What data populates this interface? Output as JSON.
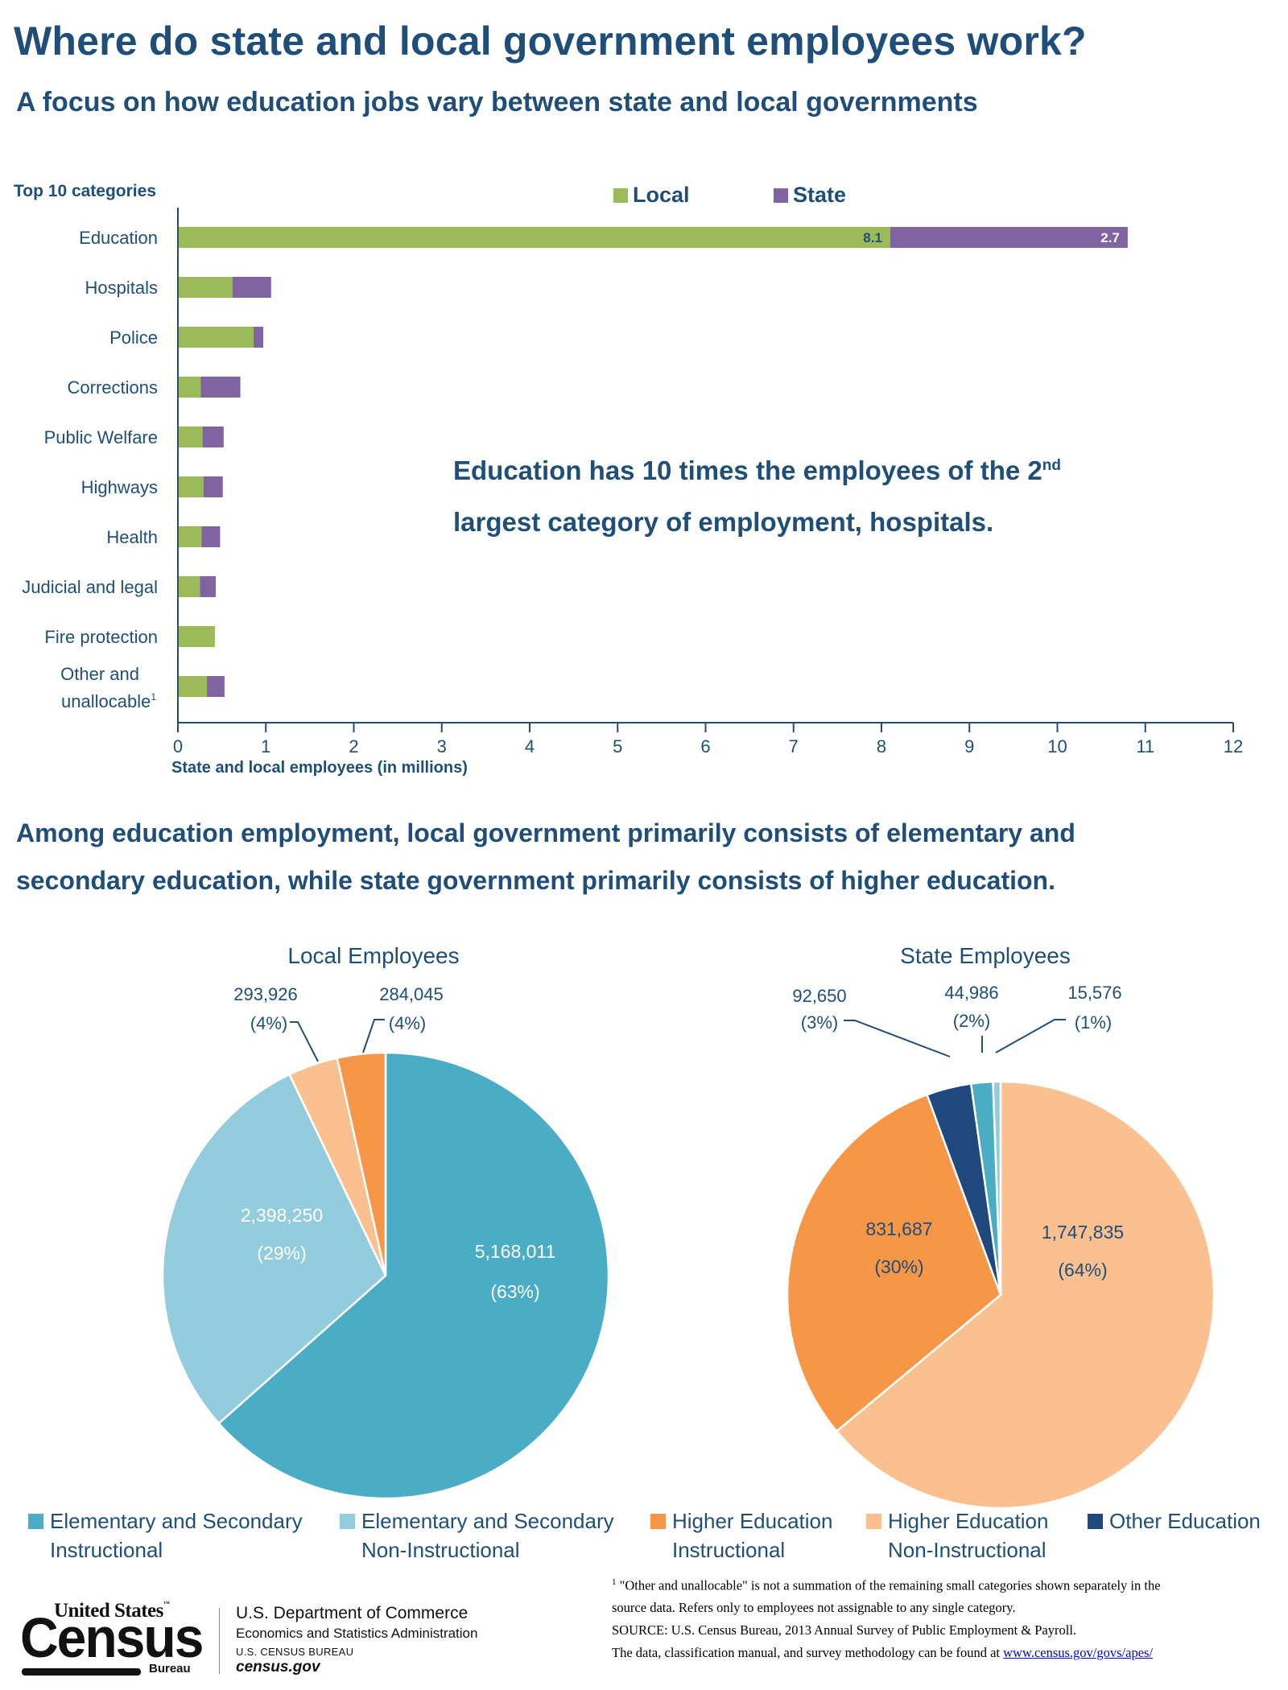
{
  "header": {
    "title": "Where do state and local government employees work?",
    "subtitle": "A focus on how education jobs vary between state and local governments"
  },
  "colors": {
    "text": "#1f4e79",
    "local": "#9bbb59",
    "state": "#8064a2",
    "elem_sec_instructional": "#4bacc6",
    "elem_sec_non_instructional": "#93cddd",
    "higher_ed_instructional": "#f79646",
    "higher_ed_non_instructional": "#fac090",
    "other_education": "#1f497d"
  },
  "annotation": {
    "line1_prefix": "Education has 10 times the employees of the 2",
    "line1_sup": "nd",
    "line2": "largest category of employment, hospitals."
  },
  "headline": {
    "line1": "Among education employment, local government primarily consists of elementary and",
    "line2": "secondary education, while state government primarily consists of higher education."
  },
  "chart_data": [
    {
      "type": "bar",
      "orientation": "horizontal",
      "stacked": true,
      "title": "Top 10 categories",
      "xlabel": "State and local employees (in millions)",
      "ylabel": "",
      "xlim": [
        0,
        12
      ],
      "xticks": [
        "0",
        "1",
        "2",
        "3",
        "4",
        "5",
        "6",
        "7",
        "8",
        "9",
        "10",
        "11",
        "12"
      ],
      "grid": false,
      "legend": {
        "placement": "top-right",
        "entries": [
          "Local",
          "State"
        ]
      },
      "categories": [
        "Education",
        "Hospitals",
        "Police",
        "Corrections",
        "Public Welfare",
        "Highways",
        "Health",
        "Judicial and legal",
        "Fire protection",
        "Other and unallocable"
      ],
      "category_footnote": {
        "index": 9,
        "mark": "1",
        "line1": "Other and",
        "line2": "unallocable"
      },
      "series": [
        {
          "name": "Local",
          "values": [
            8.1,
            0.62,
            0.86,
            0.26,
            0.28,
            0.29,
            0.27,
            0.25,
            0.42,
            0.33
          ]
        },
        {
          "name": "State",
          "values": [
            2.7,
            0.44,
            0.11,
            0.45,
            0.24,
            0.22,
            0.21,
            0.18,
            0.0,
            0.2
          ]
        }
      ],
      "data_labels": [
        {
          "category": "Education",
          "series": "Local",
          "text": "8.1"
        },
        {
          "category": "Education",
          "series": "State",
          "text": "2.7"
        }
      ]
    },
    {
      "type": "pie",
      "title": "Local Employees",
      "slices": [
        {
          "name": "Elementary and Secondary Instructional",
          "value": 5168011,
          "label": "5,168,011",
          "pct": "(63%)"
        },
        {
          "name": "Elementary and Secondary Non-Instructional",
          "value": 2398250,
          "label": "2,398,250",
          "pct": "(29%)"
        },
        {
          "name": "Higher Education Non-Instructional",
          "value": 293926,
          "label": "293,926",
          "pct": "(4%)"
        },
        {
          "name": "Higher Education Instructional",
          "value": 284045,
          "label": "284,045",
          "pct": "(4%)"
        }
      ]
    },
    {
      "type": "pie",
      "title": "State Employees",
      "slices": [
        {
          "name": "Higher Education Non-Instructional",
          "value": 1747835,
          "label": "1,747,835",
          "pct": "(64%)"
        },
        {
          "name": "Higher Education Instructional",
          "value": 831687,
          "label": "831,687",
          "pct": "(30%)"
        },
        {
          "name": "Other Education",
          "value": 92650,
          "label": "92,650",
          "pct": "(3%)"
        },
        {
          "name": "Elementary and Secondary Instructional",
          "value": 44986,
          "label": "44,986",
          "pct": "(2%)"
        },
        {
          "name": "Elementary and Secondary Non-Instructional",
          "value": 15576,
          "label": "15,576",
          "pct": "(1%)"
        }
      ]
    }
  ],
  "pie_legend": [
    {
      "line1": "Elementary and Secondary",
      "line2": "Instructional",
      "color": "#4bacc6"
    },
    {
      "line1": "Elementary and Secondary",
      "line2": "Non-Instructional",
      "color": "#93cddd"
    },
    {
      "line1": "Higher Education",
      "line2": "Instructional",
      "color": "#f79646"
    },
    {
      "line1": "Higher Education",
      "line2": "Non-Instructional",
      "color": "#fac090"
    },
    {
      "line1": "Other Education",
      "line2": "",
      "color": "#1f497d"
    }
  ],
  "footer": {
    "logo": {
      "top": "United States",
      "tm": "™",
      "main": "Census",
      "bottom": "Bureau"
    },
    "dept": {
      "line1": "U.S. Department of Commerce",
      "line2": "Economics and Statistics Administration",
      "line3": "U.S. CENSUS BUREAU",
      "line4": "census.gov"
    },
    "notes": {
      "footnote_mark": "1",
      "footnote_line1": " \"Other and unallocable\" is not a summation of the remaining small categories shown separately in the",
      "footnote_line2": "source data.  Refers only to employees not assignable to any single category.",
      "source": "SOURCE: U.S. Census Bureau, 2013 Annual Survey of Public Employment & Payroll.",
      "link_prefix": "The data, classification manual, and survey methodology can be found at ",
      "link_text": "www.census.gov/govs/apes/"
    }
  }
}
